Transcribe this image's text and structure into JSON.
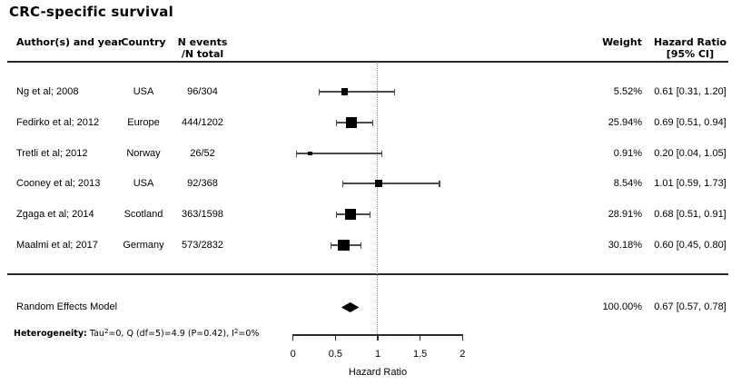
{
  "title": "CRC-specific survival",
  "columns": {
    "author": "Author(s) and year",
    "country": "Country",
    "events_line1": "N events",
    "events_line2": "/N total",
    "weight": "Weight",
    "hr_line1": "Hazard Ratio",
    "hr_line2": "[95% CI]"
  },
  "heterogeneity": {
    "label": "Heterogeneity:",
    "tau": " Tau",
    "tau_sup": "2",
    "mid": "=0, Q (df=5)=4.9 (P=0.42), I",
    "i_sup": "2",
    "tail": "=0%"
  },
  "chart_data": {
    "type": "scatter",
    "subtype": "forest-plot",
    "title": "CRC-specific survival",
    "xlabel": "Hazard Ratio",
    "xlim": [
      0,
      2
    ],
    "xticks": [
      0,
      0.5,
      1,
      1.5,
      2
    ],
    "xtick_labels": [
      "0",
      "0.5",
      "1",
      "1.5",
      "2"
    ],
    "reference_line_x": 1,
    "legend": "none",
    "studies": [
      {
        "author": "Ng et al; 2008",
        "country": "USA",
        "events": "96/304",
        "weight_label": "5.52%",
        "weight_pct": 5.52,
        "hr": 0.61,
        "ci_low": 0.31,
        "ci_high": 1.2,
        "hr_ci_label": "0.61 [0.31, 1.20]"
      },
      {
        "author": "Fedirko et al; 2012",
        "country": "Europe",
        "events": "444/1202",
        "weight_label": "25.94%",
        "weight_pct": 25.94,
        "hr": 0.69,
        "ci_low": 0.51,
        "ci_high": 0.94,
        "hr_ci_label": "0.69 [0.51, 0.94]"
      },
      {
        "author": "Tretli et al; 2012",
        "country": "Norway",
        "events": "26/52",
        "weight_label": "0.91%",
        "weight_pct": 0.91,
        "hr": 0.2,
        "ci_low": 0.04,
        "ci_high": 1.05,
        "hr_ci_label": "0.20 [0.04, 1.05]"
      },
      {
        "author": "Cooney et al; 2013",
        "country": "USA",
        "events": "92/368",
        "weight_label": "8.54%",
        "weight_pct": 8.54,
        "hr": 1.01,
        "ci_low": 0.59,
        "ci_high": 1.73,
        "hr_ci_label": "1.01 [0.59, 1.73]"
      },
      {
        "author": "Zgaga et al; 2014",
        "country": "Scotland",
        "events": "363/1598",
        "weight_label": "28.91%",
        "weight_pct": 28.91,
        "hr": 0.68,
        "ci_low": 0.51,
        "ci_high": 0.91,
        "hr_ci_label": "0.68 [0.51, 0.91]"
      },
      {
        "author": "Maalmi et al; 2017",
        "country": "Germany",
        "events": "573/2832",
        "weight_label": "30.18%",
        "weight_pct": 30.18,
        "hr": 0.6,
        "ci_low": 0.45,
        "ci_high": 0.8,
        "hr_ci_label": "0.60 [0.45, 0.80]"
      }
    ],
    "summary": {
      "label": "Random Effects Model",
      "weight_label": "100.00%",
      "hr": 0.67,
      "ci_low": 0.57,
      "ci_high": 0.78,
      "hr_ci_label": "0.67 [0.57, 0.78]"
    },
    "colors": {
      "marker": "#000000",
      "ci_line": "#4a4a4a",
      "reference_line": "#8a8a8a",
      "rule": "#2b2b2b",
      "text": "#000000"
    }
  }
}
